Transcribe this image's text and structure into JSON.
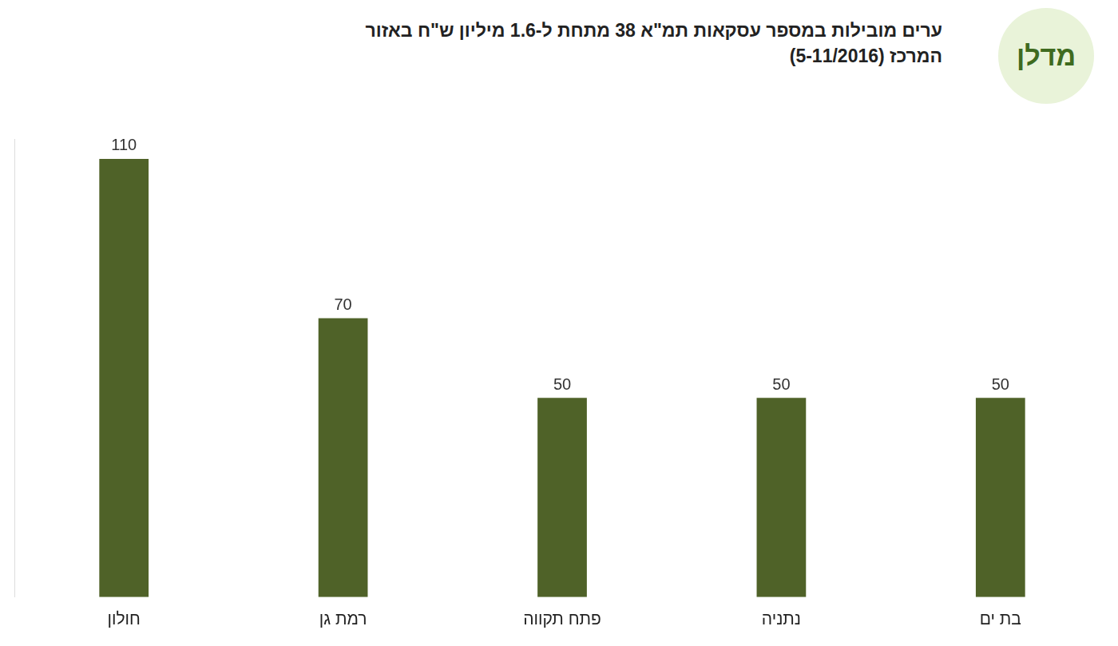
{
  "chart_data": {
    "type": "bar",
    "title": "ערים מובילות במספר עסקאות תמ\"א 38 מתחת ל-1.6 מיליון ש\"ח באזור המרכז (5-11/2016)",
    "annotations": [
      "מדלן"
    ],
    "categories": [
      "חולון",
      "רמת גן",
      "פתח תקווה",
      "נתניה",
      "בת ים"
    ],
    "values": [
      110,
      70,
      50,
      50,
      50
    ],
    "color": "#4f6228",
    "ylim": [
      0,
      115
    ],
    "yticks": [],
    "grid": false,
    "data_labels": true,
    "tick_labels": "x"
  }
}
